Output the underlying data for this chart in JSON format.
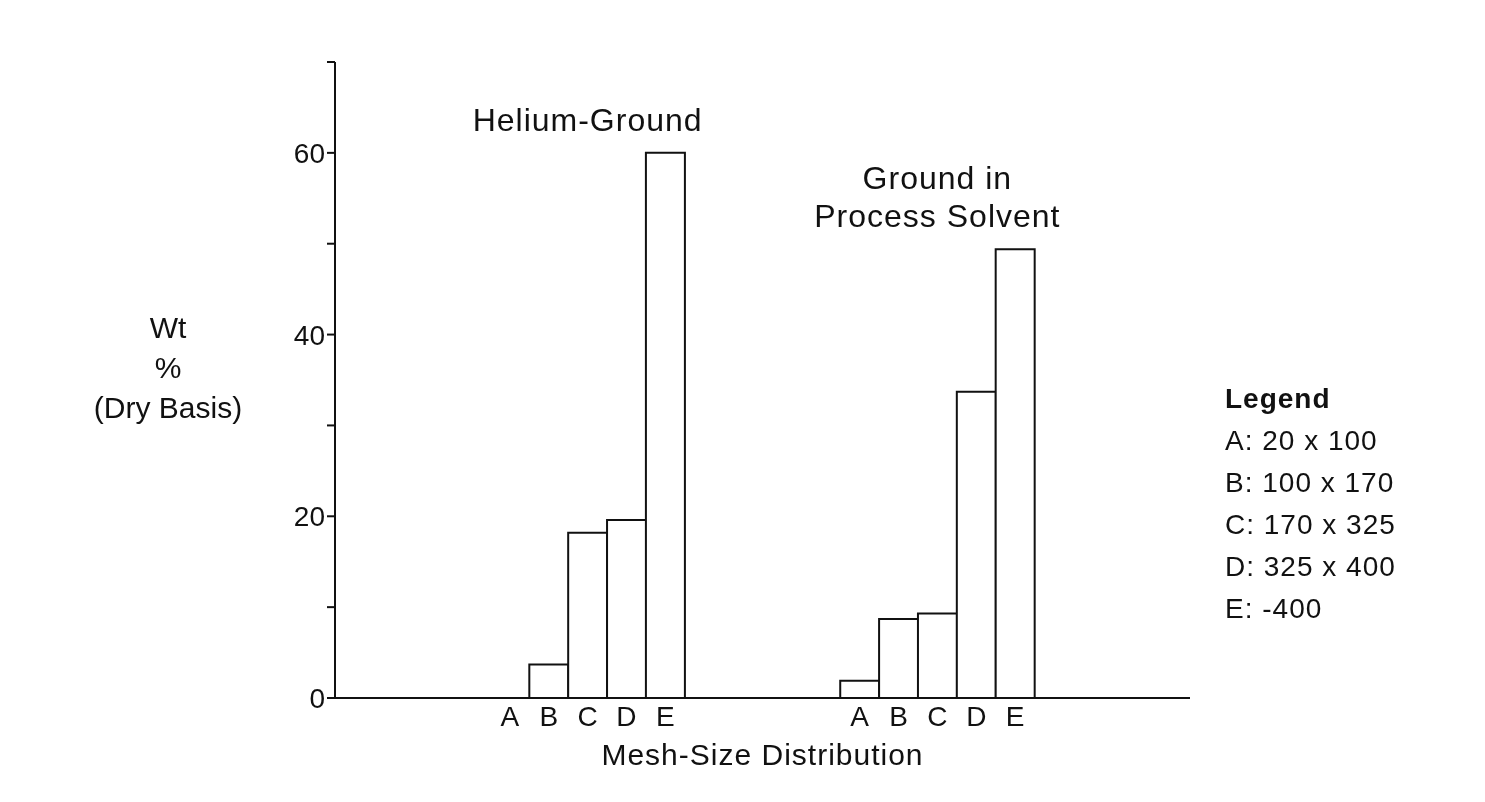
{
  "chart_data": {
    "type": "bar",
    "xlabel": "Mesh-Size Distribution",
    "ylabel": "Wt\n%\n(Dry Basis)",
    "categories": [
      null,
      null,
      null,
      null,
      "A",
      "B",
      "C",
      "D",
      "E",
      null,
      null,
      null,
      null,
      "A",
      "B",
      "C",
      "D",
      "E",
      null,
      null,
      null,
      null
    ],
    "series": [
      {
        "name": "Helium-Ground",
        "color": "#ffffff",
        "values": [
          null,
          null,
          null,
          null,
          0,
          3.7,
          18.2,
          19.6,
          60,
          null,
          null,
          null,
          null,
          null,
          null,
          null,
          null,
          null,
          null,
          null,
          null,
          null
        ]
      },
      {
        "name": "Ground in Process Solvent",
        "color": "#ffffff",
        "values": [
          null,
          null,
          null,
          null,
          null,
          null,
          null,
          null,
          null,
          null,
          null,
          null,
          null,
          1.9,
          8.7,
          9.3,
          33.7,
          49.4,
          null,
          null,
          null,
          null
        ]
      }
    ],
    "ylim": [
      0,
      70
    ],
    "yticks": [
      0,
      {
        "value": 10,
        "label": null
      },
      20,
      {
        "value": 30,
        "label": null
      },
      40,
      {
        "value": 50,
        "label": null
      },
      60,
      {
        "value": 70,
        "label": null
      }
    ],
    "grid": false,
    "annotations": [
      "Legend",
      "A: 20 x 100",
      "B: 100 x 170",
      "C: 170 x 325",
      "D: 325 x 400",
      "E: -400"
    ]
  }
}
